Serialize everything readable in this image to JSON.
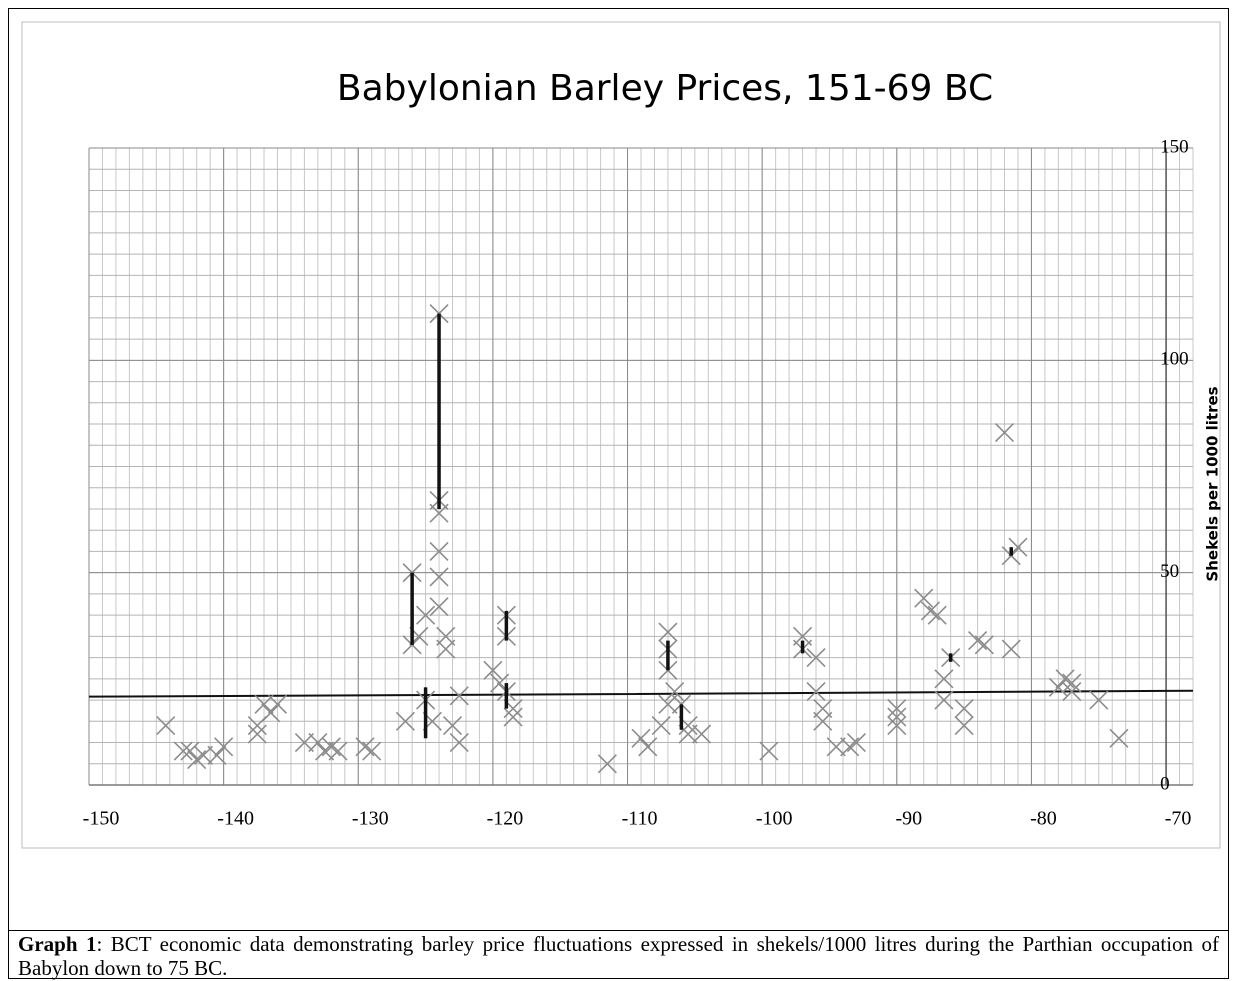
{
  "chart_data": {
    "type": "scatter",
    "title": "Babylonian Barley Prices, 151-69 BC",
    "y_axis_label": "Shekels per 1000 litres",
    "xlim": [
      -150,
      -68
    ],
    "ylim": [
      0,
      150
    ],
    "xticks": [
      -150,
      -140,
      -130,
      -120,
      -110,
      -100,
      -90,
      -80,
      -70
    ],
    "yticks": [
      0,
      50,
      100,
      150
    ],
    "grid": true,
    "series": [
      {
        "color": "#8c8c8c",
        "x": [
          -144.3,
          -143,
          -142.5,
          -142,
          -141.5,
          -140.5,
          -140,
          -137.5,
          -137.5,
          -137,
          -136.5,
          -136,
          -134,
          -133,
          -132.5,
          -132,
          -131.5,
          -129.5,
          -129,
          -126.5,
          -126,
          -126,
          -125.5,
          -125,
          -125,
          -124.5,
          -124,
          -124,
          -124,
          -124,
          -124,
          -124,
          -123.5,
          -123.5,
          -123,
          -122.5,
          -122.5,
          -120,
          -119.5,
          -119,
          -119,
          -119,
          -118.5,
          -118.5,
          -111.5,
          -109,
          -108.5,
          -107.5,
          -107,
          -107,
          -107,
          -107,
          -106.5,
          -106,
          -105.5,
          -105.5,
          -104.5,
          -99.5,
          -97,
          -97,
          -96,
          -96,
          -95.5,
          -95.5,
          -94.5,
          -93.5,
          -93,
          -90,
          -90,
          -90,
          -88,
          -87.5,
          -87,
          -86.5,
          -86.5,
          -86,
          -85,
          -85,
          -84,
          -83.5,
          -82,
          -81.5,
          -81,
          -81.5,
          -78,
          -77.5,
          -77,
          -77,
          -75,
          -73.5
        ],
        "values": [
          14,
          8,
          8,
          6,
          7,
          7,
          9,
          12,
          14,
          19,
          17,
          19,
          10,
          10,
          8,
          9,
          8,
          9,
          8,
          15,
          50,
          33,
          35,
          40,
          20,
          15,
          111,
          67,
          64,
          55,
          49,
          42,
          35,
          32,
          14,
          10,
          21,
          27,
          24,
          40,
          35,
          22,
          18,
          16,
          5,
          11,
          9,
          14,
          19,
          36,
          32,
          27,
          22,
          19,
          14,
          12,
          12,
          8,
          35,
          32,
          30,
          22,
          18,
          15,
          9,
          9,
          10,
          18,
          16,
          14,
          44,
          41,
          40,
          25,
          20,
          30,
          18,
          14,
          34,
          33,
          83,
          54,
          56,
          32,
          23,
          25,
          24,
          22,
          20,
          11
        ]
      }
    ],
    "ranges": {
      "color": "#111111",
      "x": [
        -126,
        -125,
        -124,
        -119,
        -119,
        -107,
        -106,
        -97,
        -86,
        -81.5
      ],
      "low": [
        33,
        11,
        65,
        34,
        18,
        27,
        13,
        31,
        29,
        54
      ],
      "high": [
        50,
        23,
        111,
        41,
        24,
        34,
        19,
        34,
        31,
        56
      ]
    },
    "trend": {
      "color": "#111111",
      "x": [
        -150,
        -117,
        -68
      ],
      "values": [
        20.8,
        21.3,
        22.2
      ]
    }
  },
  "caption": {
    "label": "Graph 1",
    "text": ": BCT economic data demonstrating barley price fluctuations expressed in shekels/1000 litres during the Parthian occupation of Babylon down to 75 BC."
  }
}
